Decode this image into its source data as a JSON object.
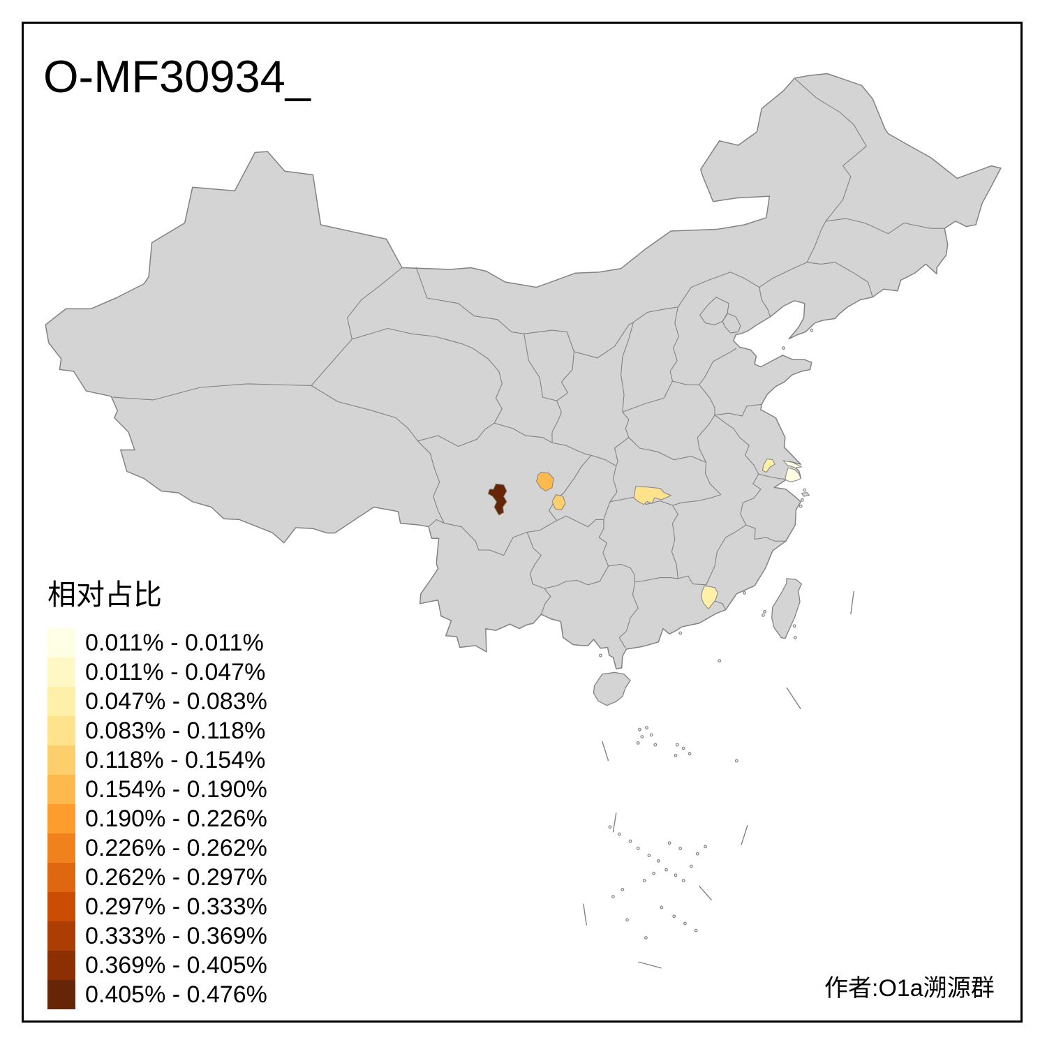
{
  "title": "O-MF30934_",
  "attribution": "作者:O1a溯源群",
  "legend": {
    "title": "相对占比",
    "classes": [
      {
        "label": "0.011% - 0.011%",
        "color": "#FFFFE5"
      },
      {
        "label": "0.011% - 0.047%",
        "color": "#FFF8C5"
      },
      {
        "label": "0.047% - 0.083%",
        "color": "#FEF0A9"
      },
      {
        "label": "0.083% - 0.118%",
        "color": "#FEE28C"
      },
      {
        "label": "0.118% - 0.154%",
        "color": "#FDCF6C"
      },
      {
        "label": "0.154% - 0.190%",
        "color": "#FDB94E"
      },
      {
        "label": "0.190% - 0.226%",
        "color": "#FD9D2E"
      },
      {
        "label": "0.226% - 0.262%",
        "color": "#F0821D"
      },
      {
        "label": "0.262% - 0.297%",
        "color": "#DE670F"
      },
      {
        "label": "0.297% - 0.333%",
        "color": "#CB4D03"
      },
      {
        "label": "0.333% - 0.369%",
        "color": "#AC3D03"
      },
      {
        "label": "0.369% - 0.405%",
        "color": "#8C3004"
      },
      {
        "label": "0.405% - 0.476%",
        "color": "#662506"
      }
    ]
  },
  "map": {
    "land_color": "#D4D4D4",
    "border_color": "#828282",
    "background_color": "#FFFFFF",
    "highlighted_regions": [
      {
        "id": "r1",
        "class_index": 12,
        "class_label": "0.405% - 0.476%",
        "approx_location": "western Sichuan"
      },
      {
        "id": "r2",
        "class_index": 5,
        "class_label": "0.154% - 0.190%",
        "approx_location": "northeastern Sichuan"
      },
      {
        "id": "r3",
        "class_index": 4,
        "class_label": "0.118% - 0.154%",
        "approx_location": "Chongqing area"
      },
      {
        "id": "r4",
        "class_index": 3,
        "class_label": "0.083% - 0.118%",
        "approx_location": "southern Hubei / Yangtze plain"
      },
      {
        "id": "r5",
        "class_index": 2,
        "class_label": "0.047% - 0.083%",
        "approx_location": "southern Jiangsu"
      },
      {
        "id": "r6",
        "class_index": 0,
        "class_label": "0.011% - 0.011%",
        "approx_location": "Shanghai"
      },
      {
        "id": "r7",
        "class_index": 2,
        "class_label": "0.047% - 0.083%",
        "approx_location": "eastern Guangdong"
      }
    ]
  },
  "chart_data": {
    "type": "choropleth_map",
    "title": "O-MF30934_",
    "legend_title": "相对占比",
    "legend_position": "bottom-left",
    "value_bins": [
      "0.011% - 0.011%",
      "0.011% - 0.047%",
      "0.047% - 0.083%",
      "0.083% - 0.118%",
      "0.118% - 0.154%",
      "0.154% - 0.190%",
      "0.190% - 0.226%",
      "0.226% - 0.262%",
      "0.262% - 0.297%",
      "0.297% - 0.333%",
      "0.333% - 0.369%",
      "0.369% - 0.405%",
      "0.405% - 0.476%"
    ],
    "colored_region_count": 7,
    "annotations": [
      "作者:O1a溯源群"
    ]
  }
}
